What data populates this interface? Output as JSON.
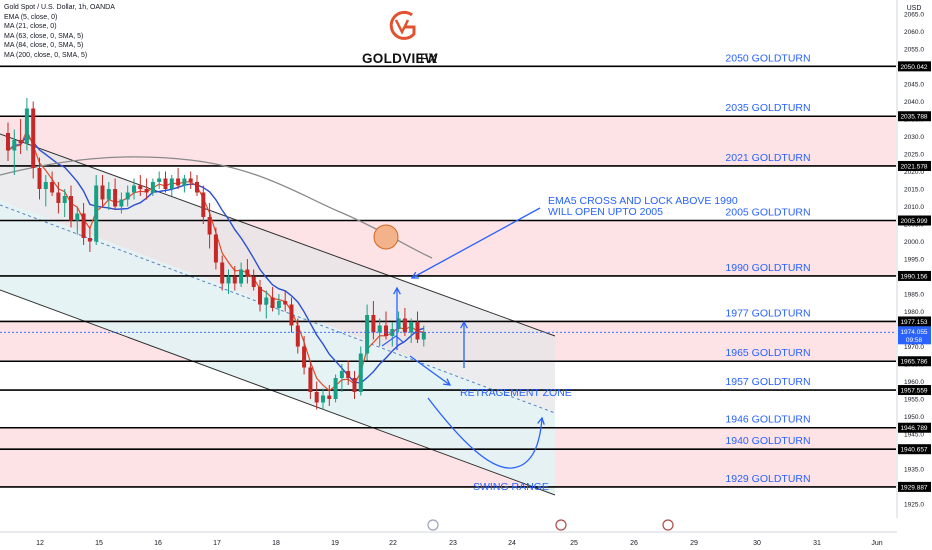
{
  "header": {
    "symbol": "Gold Spot / U.S. Dollar, 1h, OANDA",
    "indicators": [
      "EMA (5, close, 0)",
      "MA (21, close, 0)",
      "MA (63, close, 0, SMA, 5)",
      "MA (84, close, 0, SMA, 5)",
      "MA (200, close, 0, SMA, 5)"
    ]
  },
  "logo": {
    "brand": "GOLDVIEW",
    "suffix": "FX"
  },
  "axis": {
    "currency": "USD"
  },
  "colors": {
    "zone_pink": "#fde3e6",
    "zone_grey": "#e6e6e8",
    "zone_cyan": "#e3f6f6",
    "label_blue": "#2962ff",
    "ema": "#e04b2a",
    "ma_blue": "#2a4fd0",
    "ma_grey": "#8a8a8a",
    "candle_red": "#c62828",
    "candle_green": "#16a085",
    "price_tag": "#2962ff"
  },
  "chart_data": {
    "type": "candlestick",
    "ylim": [
      1921,
      2069
    ],
    "y_ticks": [
      1925,
      1930,
      1935,
      1940,
      1945,
      1950,
      1955,
      1960,
      1965,
      1970,
      1975,
      1980,
      1985,
      1990,
      1995,
      2000,
      2005,
      2010,
      2015,
      2020,
      2025,
      2030,
      2035,
      2040,
      2045,
      2050,
      2055,
      2060,
      2065
    ],
    "x_ticks": [
      {
        "label": "12",
        "day": 12
      },
      {
        "label": "15",
        "day": 15
      },
      {
        "label": "16",
        "day": 16
      },
      {
        "label": "17",
        "day": 17
      },
      {
        "label": "18",
        "day": 18
      },
      {
        "label": "19",
        "day": 19
      },
      {
        "label": "22",
        "day": 22
      },
      {
        "label": "23",
        "day": 23
      },
      {
        "label": "24",
        "day": 24
      },
      {
        "label": "25",
        "day": 25
      },
      {
        "label": "26",
        "day": 26
      },
      {
        "label": "29",
        "day": 29
      },
      {
        "label": "30",
        "day": 30
      },
      {
        "label": "31",
        "day": 31
      },
      {
        "label": "Jun",
        "day": 32
      }
    ],
    "levels": [
      {
        "price": 2050.042,
        "label": "2050 GOLDTURN",
        "tag": "2050.042"
      },
      {
        "price": 2035.788,
        "label": "2035 GOLDTURN",
        "tag": "2035.788"
      },
      {
        "price": 2021.578,
        "label": "2021 GOLDTURN",
        "tag": "2021.578"
      },
      {
        "price": 2005.999,
        "label": "2005 GOLDTURN",
        "tag": "2005.999"
      },
      {
        "price": 1990.156,
        "label": "1990 GOLDTURN",
        "tag": "1990.156"
      },
      {
        "price": 1977.153,
        "label": "1977 GOLDTURN",
        "tag": "1977.153"
      },
      {
        "price": 1965.786,
        "label": "1965 GOLDTURN",
        "tag": "1965.786"
      },
      {
        "price": 1957.559,
        "label": "1957 GOLDTURN",
        "tag": "1957.559"
      },
      {
        "price": 1946.789,
        "label": "1946 GOLDTURN",
        "tag": "1946.789"
      },
      {
        "price": 1940.657,
        "label": "1940 GOLDTURN",
        "tag": "1940.657"
      },
      {
        "price": 1929.887,
        "label": "1929 GOLDTURN",
        "tag": "1929.887"
      }
    ],
    "zones": [
      {
        "from": 2021.578,
        "to": 2035.788,
        "color": "pink"
      },
      {
        "from": 1990.156,
        "to": 2005.999,
        "color": "pink"
      },
      {
        "from": 1965.786,
        "to": 1977.153,
        "color": "pink"
      },
      {
        "from": 1940.657,
        "to": 1946.789,
        "color": "pink"
      },
      {
        "from": 1929.887,
        "to": 1940.657,
        "color": "pink"
      }
    ],
    "current_price": {
      "price": 1974.055,
      "tag": "1974.055",
      "countdown": "09:58"
    },
    "annotations": [
      {
        "text": "EMA5 CROSS AND LOCK ABOVE 1990",
        "line": 1
      },
      {
        "text": "WILL OPEN UPTO 2005",
        "line": 2
      },
      {
        "text": "RETRACEMENT ZONE"
      },
      {
        "text": "SWING RANGE"
      }
    ],
    "candles": [
      [
        2031,
        2034,
        2023,
        2026
      ],
      [
        2026,
        2032,
        2019,
        2029
      ],
      [
        2029,
        2035,
        2025,
        2028
      ],
      [
        2028,
        2041,
        2026,
        2038
      ],
      [
        2038,
        2040,
        2018,
        2021
      ],
      [
        2021,
        2024,
        2012,
        2015
      ],
      [
        2015,
        2019,
        2010,
        2017
      ],
      [
        2017,
        2020,
        2013,
        2014
      ],
      [
        2014,
        2017,
        2008,
        2011
      ],
      [
        2011,
        2015,
        2007,
        2013
      ],
      [
        2013,
        2016,
        2004,
        2006
      ],
      [
        2006,
        2010,
        2002,
        2008
      ],
      [
        2008,
        2011,
        1999,
        2001
      ],
      [
        2001,
        2004,
        1997,
        2000
      ],
      [
        2000,
        2019,
        1999,
        2016
      ],
      [
        2016,
        2019,
        2010,
        2012
      ],
      [
        2012,
        2017,
        2009,
        2015
      ],
      [
        2015,
        2018,
        2009,
        2010
      ],
      [
        2010,
        2014,
        2008,
        2012
      ],
      [
        2012,
        2016,
        2010,
        2014
      ],
      [
        2014,
        2018,
        2012,
        2016
      ],
      [
        2016,
        2019,
        2013,
        2015
      ],
      [
        2015,
        2018,
        2012,
        2014
      ],
      [
        2014,
        2018,
        2013,
        2017
      ],
      [
        2017,
        2020,
        2015,
        2018
      ],
      [
        2018,
        2020,
        2014,
        2015
      ],
      [
        2015,
        2019,
        2013,
        2018
      ],
      [
        2018,
        2021,
        2015,
        2016
      ],
      [
        2016,
        2019,
        2014,
        2018
      ],
      [
        2018,
        2020,
        2015,
        2017
      ],
      [
        2017,
        2019,
        2013,
        2014
      ],
      [
        2014,
        2016,
        2005,
        2007
      ],
      [
        2007,
        2011,
        1998,
        2002
      ],
      [
        2002,
        2004,
        1992,
        1994
      ],
      [
        1994,
        1996,
        1986,
        1988
      ],
      [
        1988,
        1992,
        1985,
        1990
      ],
      [
        1990,
        1993,
        1986,
        1988
      ],
      [
        1988,
        1994,
        1987,
        1992
      ],
      [
        1992,
        1995,
        1988,
        1990
      ],
      [
        1990,
        1992,
        1986,
        1987
      ],
      [
        1987,
        1989,
        1980,
        1982
      ],
      [
        1982,
        1986,
        1978,
        1984
      ],
      [
        1984,
        1987,
        1980,
        1981
      ],
      [
        1981,
        1985,
        1979,
        1983
      ],
      [
        1983,
        1986,
        1980,
        1982
      ],
      [
        1982,
        1984,
        1974,
        1976
      ],
      [
        1976,
        1978,
        1968,
        1970
      ],
      [
        1970,
        1973,
        1962,
        1964
      ],
      [
        1964,
        1966,
        1955,
        1957
      ],
      [
        1957,
        1960,
        1952,
        1954
      ],
      [
        1954,
        1958,
        1952,
        1956
      ],
      [
        1956,
        1959,
        1953,
        1955
      ],
      [
        1955,
        1962,
        1954,
        1961
      ],
      [
        1961,
        1965,
        1957,
        1963
      ],
      [
        1963,
        1966,
        1959,
        1961
      ],
      [
        1961,
        1963,
        1955,
        1957
      ],
      [
        1957,
        1970,
        1956,
        1968
      ],
      [
        1968,
        1982,
        1966,
        1979
      ],
      [
        1979,
        1983,
        1972,
        1974
      ],
      [
        1974,
        1978,
        1970,
        1976
      ],
      [
        1976,
        1980,
        1972,
        1973
      ],
      [
        1973,
        1977,
        1970,
        1975
      ],
      [
        1975,
        1980,
        1974,
        1978
      ],
      [
        1978,
        1981,
        1973,
        1974
      ],
      [
        1974,
        1978,
        1971,
        1977
      ],
      [
        1977,
        1980,
        1971,
        1972
      ],
      [
        1972,
        1976,
        1970,
        1974
      ]
    ]
  }
}
